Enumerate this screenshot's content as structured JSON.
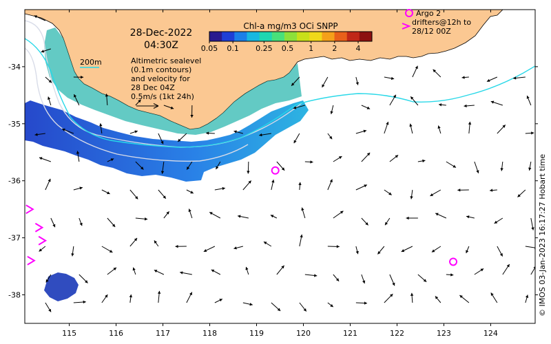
{
  "header": {
    "date": "28-Dec-2022",
    "time": "04:30Z"
  },
  "colorbar": {
    "title": "Chl-a mg/m3 OCi SNPP",
    "ticks": [
      "0.05",
      "0.1",
      "0.25",
      "0.5",
      "1",
      "2",
      "4"
    ],
    "colors": [
      "#2a1b8f",
      "#1f3fd6",
      "#1c7fe8",
      "#19b8e0",
      "#1fd6b0",
      "#48e07a",
      "#8de03a",
      "#c8e01a",
      "#f0d81a",
      "#f5a01a",
      "#e8601a",
      "#c02818",
      "#8c1010"
    ]
  },
  "legend": {
    "contour_label": "200m",
    "sealevel_lines": [
      "Altimetric sealevel",
      "(0.1m contours)",
      "and velocity for",
      "28 Dec 04Z",
      "0.5m/s (1kt 24h)"
    ],
    "argo_lines": [
      "Argo 2"
    ],
    "drifter_lines": [
      "drifters@12h to",
      "28/12 00Z"
    ]
  },
  "axes": {
    "x_ticks": [
      "115",
      "116",
      "117",
      "118",
      "119",
      "120",
      "121",
      "122",
      "123",
      "124"
    ],
    "y_ticks": [
      "-34",
      "-35",
      "-36",
      "-37",
      "-38"
    ],
    "x_range": [
      114.05,
      124.95
    ],
    "y_range": [
      -38.5,
      -33.0
    ]
  },
  "credit": "© IMOS 03-Jan-2023 16:17:27 Hobart time",
  "colors": {
    "land": "#fbc892",
    "ocean": "#ffffff",
    "contour_200m": "#28d8e8",
    "sealevel_contour": "#d8dce8",
    "marker": "#ff00ff",
    "arrow": "#000000"
  },
  "markers": {
    "argo_floats": [
      {
        "lon": 119.4,
        "lat": -35.82
      },
      {
        "lon": 123.2,
        "lat": -37.42
      }
    ],
    "drifters": [
      {
        "lon": 114.15,
        "lat": -36.5
      },
      {
        "lon": 114.35,
        "lat": -36.82
      },
      {
        "lon": 114.42,
        "lat": -37.05
      },
      {
        "lon": 114.18,
        "lat": -37.4
      }
    ]
  }
}
